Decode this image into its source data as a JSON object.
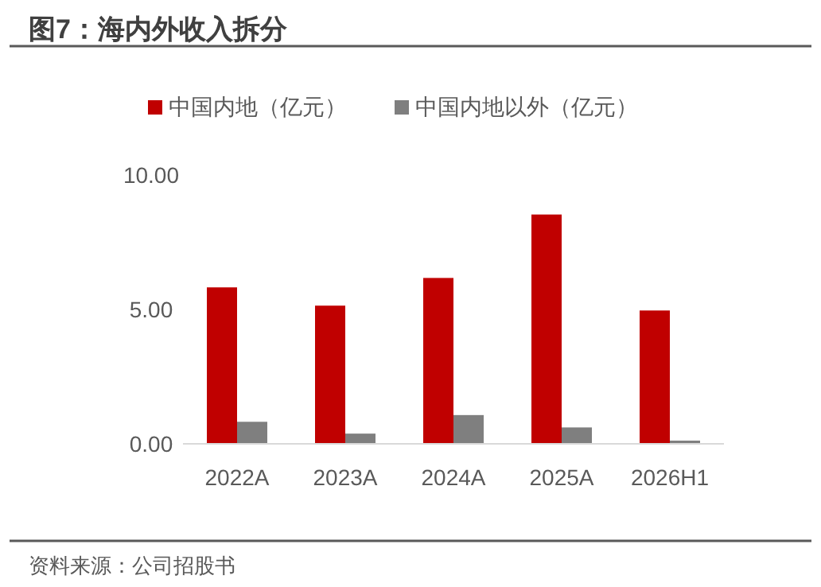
{
  "chart_data": {
    "type": "bar",
    "title": "图7：海内外收入拆分",
    "categories": [
      "2022A",
      "2023A",
      "2024A",
      "2025A",
      "2026H1"
    ],
    "series": [
      {
        "name": "中国内地（亿元）",
        "color": "#c00000",
        "values": [
          5.82,
          5.14,
          6.17,
          8.53,
          4.96
        ]
      },
      {
        "name": "中国内地以外（亿元）",
        "color": "#7f7f7f",
        "values": [
          0.82,
          0.38,
          1.07,
          0.61,
          0.12
        ]
      }
    ],
    "ylim": [
      0,
      10
    ],
    "yticks": [
      {
        "value": 0,
        "label": "0.00"
      },
      {
        "value": 5,
        "label": "5.00"
      },
      {
        "value": 10,
        "label": "10.00"
      }
    ],
    "grid": false,
    "legend": "top",
    "annotations": [
      "资料来源：公司招股书"
    ]
  }
}
